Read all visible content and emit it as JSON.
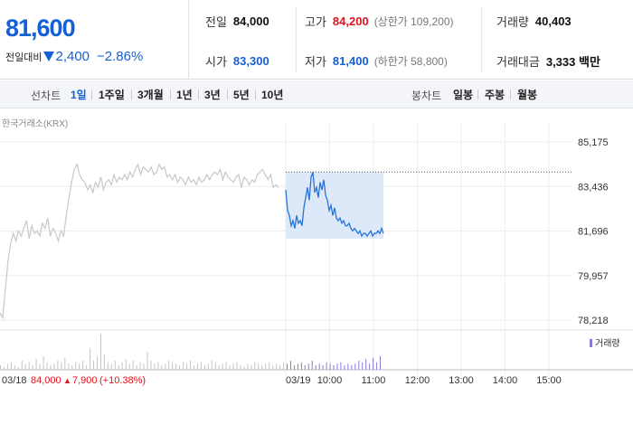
{
  "summary": {
    "price": "81,600",
    "change_label": "전일대비",
    "change_value": "2,400",
    "change_percent": "−2.86%",
    "prev_close_label": "전일",
    "prev_close": "84,000",
    "high_label": "고가",
    "high": "84,200",
    "upper_limit": "(상한가 109,200)",
    "volume_label": "거래량",
    "volume": "40,403",
    "open_label": "시가",
    "open": "83,300",
    "low_label": "저가",
    "low": "81,400",
    "lower_limit": "(하한가 58,800)",
    "amount_label": "거래대금",
    "amount": "3,333 백만"
  },
  "period_bar": {
    "line_label": "선차트",
    "line_periods": [
      "1일",
      "1주일",
      "3개월",
      "1년",
      "3년",
      "5년",
      "10년"
    ],
    "active_period": "1일",
    "candle_label": "봉차트",
    "candle_periods": [
      "일봉",
      "주봉",
      "월봉"
    ]
  },
  "colors": {
    "up": "#e0141e",
    "down": "#1560d6",
    "price_line": "#2a74d6",
    "area_fill": "#dde8f8",
    "prev_line": "#c8c8c8"
  },
  "chart_data": {
    "type": "line",
    "source_label": "한국거래소(KRX)",
    "y_ticks": [
      "85,175",
      "83,436",
      "81,696",
      "79,957",
      "78,218"
    ],
    "ylim": [
      78218,
      85175
    ],
    "volume_legend": "거래량",
    "prev_day": {
      "date": "03/18",
      "close": "84,000",
      "change": "7,900",
      "change_percent": "(+10.38%)"
    },
    "today_date": "03/19",
    "x_time_labels": [
      "10:00",
      "11:00",
      "12:00",
      "13:00",
      "14:00",
      "15:00"
    ],
    "reference_price": 84000,
    "series": [
      {
        "values": [
          78500,
          78300,
          79400,
          80500,
          81200,
          81600,
          81300,
          81700,
          81500,
          81800,
          82100,
          81400,
          81900,
          81600,
          81700,
          81500,
          82000,
          81800,
          82200,
          81500,
          81800,
          81600,
          81300,
          81700,
          81500,
          82300,
          83000,
          83600,
          84100,
          84300,
          83900,
          83700,
          83600,
          83300,
          83500,
          83200,
          83600,
          83400,
          83800,
          83300,
          83600,
          83700,
          83500,
          83900,
          83600,
          83800,
          83700,
          83900,
          83700,
          84000,
          83800,
          84100,
          84300,
          83900,
          84200,
          84100,
          84000,
          84200,
          83900,
          84000,
          84300,
          84100,
          84200,
          83800,
          83900,
          83700,
          83900,
          83600,
          83800,
          83700,
          83500,
          83800,
          83600,
          83700,
          83500,
          83800,
          83600,
          83700,
          83900,
          83700,
          83900,
          84000,
          83900,
          84100,
          83700,
          84000,
          83800,
          83700,
          83600,
          83800,
          83900,
          83400,
          83800,
          83700,
          83500,
          83700,
          83600,
          83900,
          84000,
          84100,
          83900,
          83700,
          83900,
          83400,
          83500,
          83400
        ]
      },
      {
        "values": [
          83300,
          82500,
          82300,
          81900,
          82100,
          81800,
          82300,
          82000,
          82100,
          81900,
          82600,
          83000,
          83400,
          82900,
          83800,
          84000,
          83200,
          83400,
          83000,
          83600,
          83300,
          83700,
          83100,
          82900,
          82500,
          82700,
          82300,
          82600,
          82200,
          82100,
          82200,
          82000,
          82100,
          81900,
          81900,
          82000,
          81800,
          81700,
          81800,
          81700,
          81600,
          81700,
          81500,
          81600,
          81600,
          81500,
          81600,
          81700,
          81500,
          81600,
          81600,
          81700,
          81600,
          81800,
          81600
        ]
      }
    ],
    "volume": [
      3,
      2,
      4,
      5,
      3,
      2,
      6,
      4,
      5,
      3,
      7,
      4,
      9,
      5,
      3,
      4,
      6,
      5,
      8,
      4,
      3,
      5,
      4,
      6,
      3,
      14,
      6,
      9,
      24,
      10,
      5,
      4,
      6,
      3,
      5,
      7,
      4,
      6,
      3,
      5,
      4,
      12,
      6,
      4,
      5,
      3,
      4,
      6,
      5,
      4,
      3,
      5,
      4,
      6,
      3,
      4,
      5,
      3,
      4,
      6,
      5,
      3,
      4,
      5,
      3,
      4,
      5,
      3,
      2,
      4,
      3,
      5,
      4,
      3,
      4,
      5,
      3,
      4,
      3,
      5,
      4,
      6,
      3,
      4,
      5,
      3,
      4,
      6,
      3,
      4,
      3,
      5,
      4,
      3,
      4,
      5,
      3,
      4,
      3,
      4,
      6,
      5,
      7,
      4,
      8,
      5,
      9
    ]
  }
}
